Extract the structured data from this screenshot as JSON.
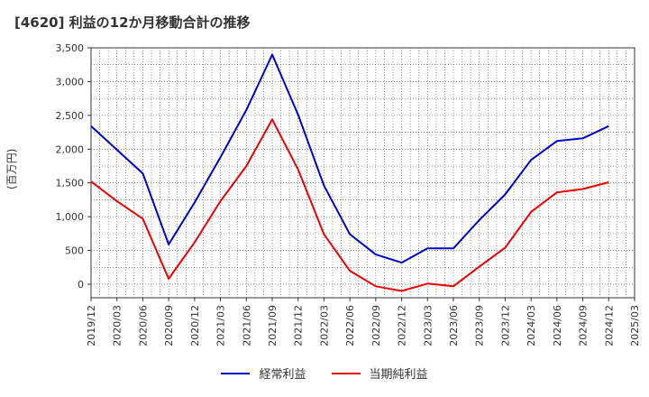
{
  "chart_data": {
    "type": "line",
    "title": "[4620]  利益の12か月移動合計の推移",
    "ylabel": "(百万円)",
    "xlabel": "",
    "ylim": [
      -200,
      3500
    ],
    "yticks": [
      0,
      500,
      1000,
      1500,
      2000,
      2500,
      3000,
      3500
    ],
    "ytick_labels": [
      "0",
      "500",
      "1,000",
      "1,500",
      "2,000",
      "2,500",
      "3,000",
      "3,500"
    ],
    "categories": [
      "2019/12",
      "2020/03",
      "2020/06",
      "2020/09",
      "2020/12",
      "2021/03",
      "2021/06",
      "2021/09",
      "2021/12",
      "2022/03",
      "2022/06",
      "2022/09",
      "2022/12",
      "2023/03",
      "2023/06",
      "2023/09",
      "2023/12",
      "2024/03",
      "2024/06",
      "2024/09",
      "2024/12",
      "2025/03"
    ],
    "grid": true,
    "legend_position": "bottom",
    "series": [
      {
        "name": "経常利益",
        "color": "#0000cc",
        "values": [
          2340,
          1990,
          1640,
          590,
          1210,
          1880,
          2580,
          3400,
          2510,
          1460,
          740,
          440,
          320,
          530,
          530,
          950,
          1330,
          1840,
          2120,
          2160,
          2340,
          null
        ]
      },
      {
        "name": "当期純利益",
        "color": "#ee0000",
        "values": [
          1520,
          1230,
          970,
          80,
          620,
          1230,
          1750,
          2440,
          1700,
          740,
          200,
          -30,
          -100,
          10,
          -30,
          260,
          540,
          1070,
          1360,
          1410,
          1510,
          null
        ]
      }
    ]
  }
}
